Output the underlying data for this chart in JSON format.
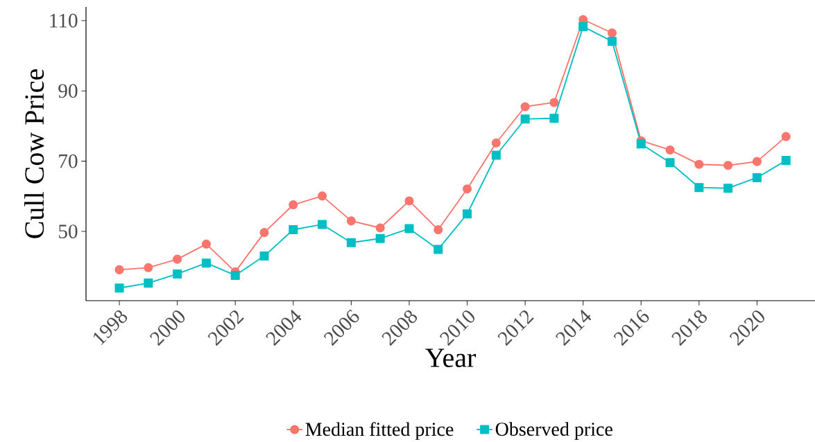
{
  "chart_data": {
    "type": "line",
    "xlabel": "Year",
    "ylabel": "Cull Cow Price",
    "x": [
      1998,
      1999,
      2000,
      2001,
      2002,
      2003,
      2004,
      2005,
      2006,
      2007,
      2008,
      2009,
      2010,
      2011,
      2012,
      2013,
      2014,
      2015,
      2016,
      2017,
      2018,
      2019,
      2020,
      2021
    ],
    "series": [
      {
        "name": "Median fitted price",
        "color": "#f8766d",
        "marker": "circle",
        "values": [
          39.1,
          39.7,
          42.1,
          46.4,
          38.5,
          49.7,
          57.6,
          60.1,
          53.0,
          51.0,
          58.7,
          50.5,
          62.1,
          75.2,
          85.5,
          86.7,
          110.3,
          106.5,
          75.8,
          73.2,
          69.1,
          68.8,
          69.9,
          77.0
        ]
      },
      {
        "name": "Observed price",
        "color": "#00bfc4",
        "marker": "square",
        "values": [
          33.9,
          35.3,
          37.9,
          41.0,
          37.5,
          43.0,
          50.5,
          52.0,
          46.8,
          48.0,
          50.8,
          44.9,
          55.0,
          71.7,
          82.0,
          82.2,
          108.3,
          104.1,
          74.9,
          69.6,
          62.5,
          62.3,
          65.3,
          70.2
        ]
      }
    ],
    "xlim": [
      1996.85,
      2022.0
    ],
    "ylim": [
      30.3,
      113.9
    ],
    "xticks": [
      1998,
      2000,
      2002,
      2004,
      2006,
      2008,
      2010,
      2012,
      2014,
      2016,
      2018,
      2020
    ],
    "yticks": [
      50,
      70,
      90,
      110
    ],
    "legend": "bottom",
    "line_style": "solid"
  }
}
